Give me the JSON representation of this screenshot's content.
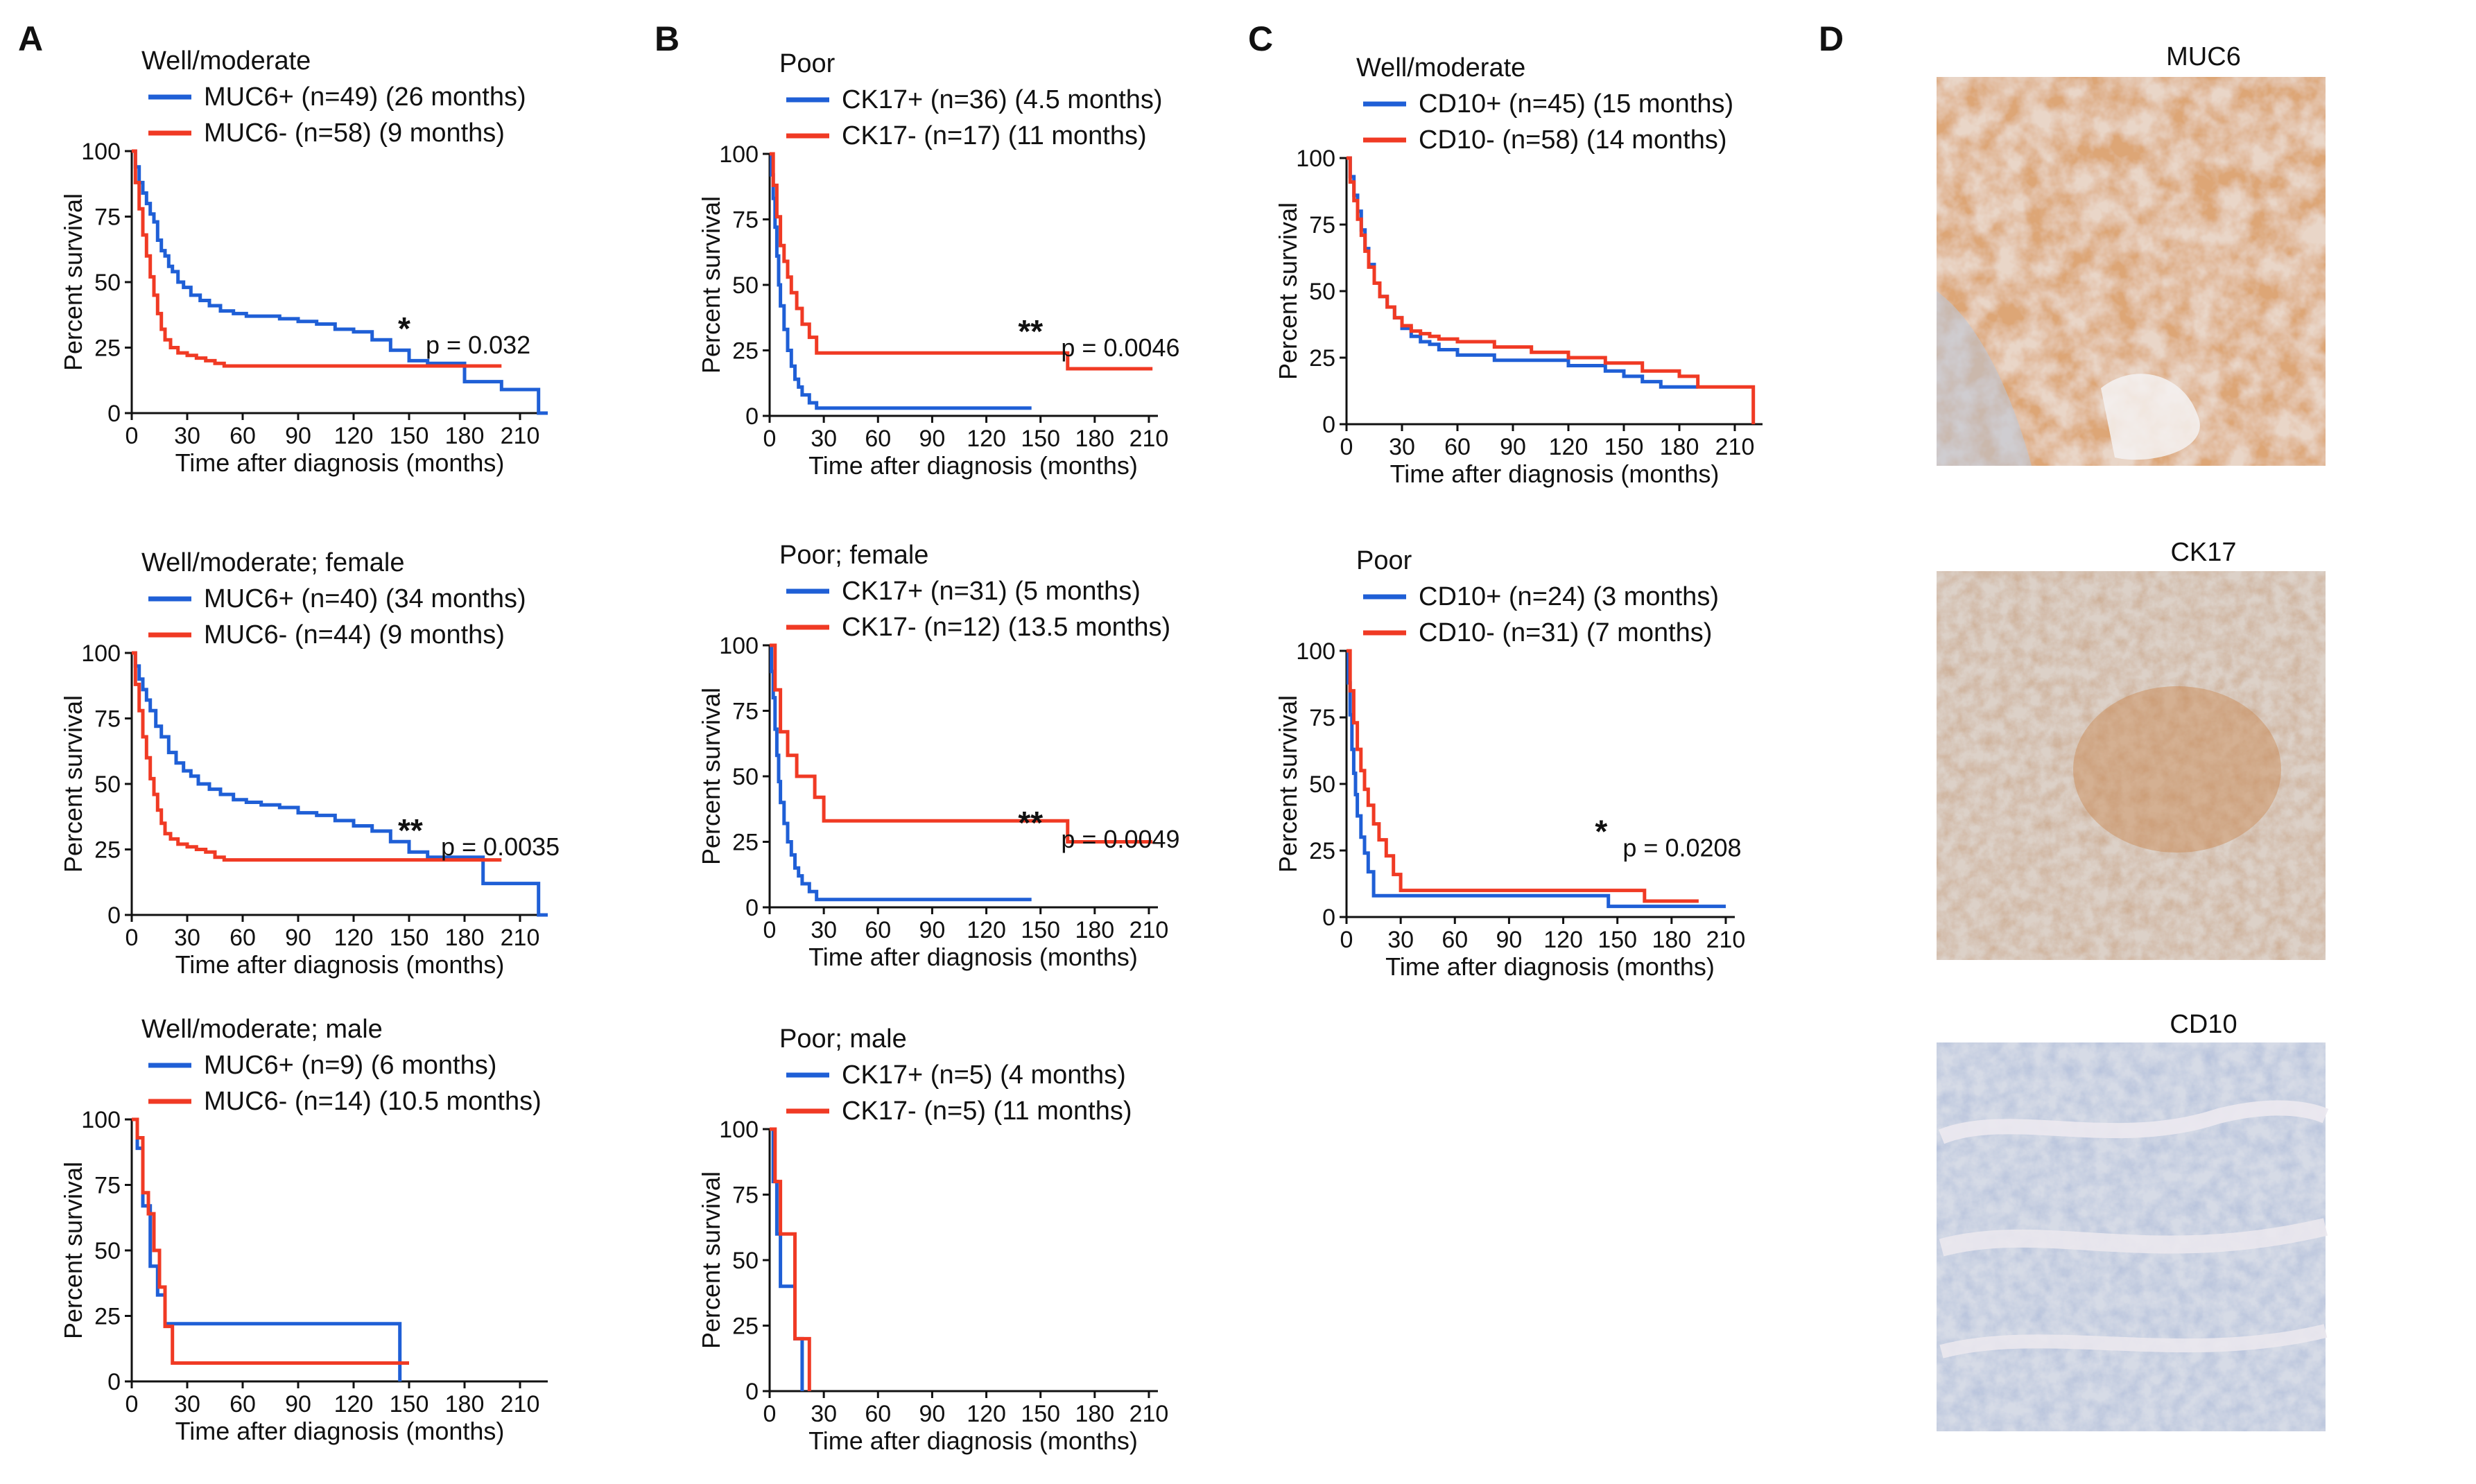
{
  "colors": {
    "positive": "#1f5fd6",
    "negative": "#f03a24",
    "axis": "#111111"
  },
  "panels": {
    "A": "A",
    "B": "B",
    "C": "C",
    "D": "D",
    "images": [
      {
        "title": "MUC6",
        "stain": "strong brown"
      },
      {
        "title": "CK17",
        "stain": "moderate brown"
      },
      {
        "title": "CD10",
        "stain": "faint blue"
      }
    ]
  },
  "chart_data": [
    {
      "type": "line",
      "panel": "A",
      "title": "Well/moderate",
      "xlabel": "Time after diagnosis (months)",
      "ylabel": "Percent survival",
      "xlim": [
        0,
        225
      ],
      "ylim": [
        0,
        100
      ],
      "xticks": [
        "0",
        "30",
        "60",
        "90",
        "120",
        "150",
        "180",
        "210"
      ],
      "yticks": [
        "0",
        "25",
        "50",
        "75",
        "100"
      ],
      "series": [
        {
          "name": "MUC6+ (n=49) (26 months)",
          "color": "#1f5fd6",
          "x": [
            0,
            2,
            4,
            6,
            8,
            10,
            12,
            14,
            16,
            18,
            20,
            22,
            25,
            28,
            32,
            37,
            42,
            48,
            55,
            62,
            70,
            80,
            90,
            100,
            110,
            120,
            130,
            140,
            150,
            160,
            170,
            180,
            190,
            200,
            210,
            220,
            225
          ],
          "y": [
            100,
            94,
            88,
            84,
            80,
            76,
            73,
            66,
            62,
            60,
            56,
            54,
            50,
            48,
            45,
            43,
            41,
            39,
            38,
            37,
            37,
            36,
            35,
            34,
            32,
            31,
            28,
            24,
            20,
            19,
            19,
            12,
            12,
            9,
            9,
            0,
            0
          ]
        },
        {
          "name": "MUC6- (n=58) (9 months)",
          "color": "#f03a24",
          "x": [
            0,
            2,
            4,
            6,
            8,
            10,
            12,
            14,
            16,
            18,
            21,
            25,
            30,
            35,
            40,
            45,
            50,
            60,
            80,
            100,
            140,
            180,
            200
          ],
          "y": [
            100,
            88,
            78,
            68,
            60,
            52,
            45,
            38,
            32,
            28,
            25,
            23,
            22,
            21,
            20,
            19,
            18,
            18,
            18,
            18,
            18,
            18,
            18
          ]
        }
      ],
      "annotation": {
        "stars": "*",
        "text": "p = 0.032"
      }
    },
    {
      "type": "line",
      "panel": "A",
      "title": "Well/moderate; female",
      "xlabel": "Time after diagnosis (months)",
      "ylabel": "Percent survival",
      "xlim": [
        0,
        225
      ],
      "ylim": [
        0,
        100
      ],
      "xticks": [
        "0",
        "30",
        "60",
        "90",
        "120",
        "150",
        "180",
        "210"
      ],
      "yticks": [
        "0",
        "25",
        "50",
        "75",
        "100"
      ],
      "series": [
        {
          "name": "MUC6+ (n=40) (34 months)",
          "color": "#1f5fd6",
          "x": [
            0,
            2,
            4,
            6,
            8,
            10,
            13,
            16,
            20,
            24,
            28,
            32,
            36,
            42,
            48,
            55,
            62,
            70,
            80,
            90,
            100,
            110,
            120,
            130,
            140,
            150,
            160,
            180,
            190,
            200,
            210,
            220,
            225
          ],
          "y": [
            100,
            95,
            90,
            86,
            82,
            78,
            72,
            68,
            62,
            58,
            55,
            53,
            50,
            48,
            46,
            44,
            43,
            42,
            41,
            39,
            38,
            36,
            34,
            32,
            28,
            24,
            22,
            22,
            12,
            12,
            12,
            0,
            0
          ]
        },
        {
          "name": "MUC6- (n=44) (9 months)",
          "color": "#f03a24",
          "x": [
            0,
            2,
            4,
            6,
            8,
            10,
            12,
            14,
            16,
            18,
            21,
            25,
            30,
            35,
            40,
            45,
            50,
            60,
            80,
            100,
            140,
            180,
            200
          ],
          "y": [
            100,
            88,
            78,
            68,
            60,
            52,
            46,
            40,
            35,
            31,
            29,
            27,
            26,
            25,
            24,
            22,
            21,
            21,
            21,
            21,
            21,
            21,
            21
          ]
        }
      ],
      "annotation": {
        "stars": "**",
        "text": "p = 0.0035"
      }
    },
    {
      "type": "line",
      "panel": "A",
      "title": "Well/moderate; male",
      "xlabel": "Time after diagnosis (months)",
      "ylabel": "Percent survival",
      "xlim": [
        0,
        225
      ],
      "ylim": [
        0,
        100
      ],
      "xticks": [
        "0",
        "30",
        "60",
        "90",
        "120",
        "150",
        "180",
        "210"
      ],
      "yticks": [
        "0",
        "25",
        "50",
        "75",
        "100"
      ],
      "series": [
        {
          "name": "MUC6+ (n=9) (6 months)",
          "color": "#1f5fd6",
          "x": [
            0,
            3,
            6,
            10,
            14,
            18,
            22,
            30,
            60,
            100,
            130,
            143,
            145
          ],
          "y": [
            100,
            89,
            67,
            44,
            33,
            22,
            22,
            22,
            22,
            22,
            22,
            22,
            0
          ]
        },
        {
          "name": "MUC6- (n=14) (10.5 months)",
          "color": "#f03a24",
          "x": [
            0,
            3,
            6,
            9,
            12,
            15,
            18,
            22,
            30,
            60,
            100,
            150
          ],
          "y": [
            100,
            93,
            72,
            64,
            50,
            36,
            21,
            7,
            7,
            7,
            7,
            7
          ]
        }
      ]
    },
    {
      "type": "line",
      "panel": "B",
      "title": "Poor",
      "xlabel": "Time after diagnosis (months)",
      "ylabel": "Percent survival",
      "xlim": [
        0,
        215
      ],
      "ylim": [
        0,
        100
      ],
      "xticks": [
        "0",
        "30",
        "60",
        "90",
        "120",
        "150",
        "180",
        "210"
      ],
      "yticks": [
        "0",
        "25",
        "50",
        "75",
        "100"
      ],
      "series": [
        {
          "name": "CK17+ (n=36) (4.5 months)",
          "color": "#1f5fd6",
          "x": [
            0,
            1,
            2,
            3,
            4,
            5,
            6,
            8,
            10,
            12,
            14,
            16,
            18,
            22,
            26,
            30,
            60,
            100,
            145
          ],
          "y": [
            100,
            92,
            83,
            72,
            61,
            50,
            42,
            33,
            25,
            19,
            14,
            11,
            8,
            5,
            3,
            3,
            3,
            3,
            3
          ]
        },
        {
          "name": "CK17- (n=17) (11 months)",
          "color": "#f03a24",
          "x": [
            0,
            2,
            4,
            6,
            8,
            10,
            12,
            15,
            18,
            22,
            26,
            30,
            60,
            100,
            140,
            165,
            190,
            212
          ],
          "y": [
            100,
            88,
            76,
            65,
            59,
            53,
            47,
            41,
            35,
            30,
            24,
            24,
            24,
            24,
            24,
            18,
            18,
            18
          ]
        }
      ],
      "annotation": {
        "stars": "**",
        "text": "p = 0.0046"
      }
    },
    {
      "type": "line",
      "panel": "B",
      "title": "Poor; female",
      "xlabel": "Time after diagnosis (months)",
      "ylabel": "Percent survival",
      "xlim": [
        0,
        215
      ],
      "ylim": [
        0,
        100
      ],
      "xticks": [
        "0",
        "30",
        "60",
        "90",
        "120",
        "150",
        "180",
        "210"
      ],
      "yticks": [
        "0",
        "25",
        "50",
        "75",
        "100"
      ],
      "series": [
        {
          "name": "CK17+ (n=31) (5 months)",
          "color": "#1f5fd6",
          "x": [
            0,
            1,
            2,
            3,
            4,
            5,
            6,
            8,
            10,
            12,
            14,
            16,
            18,
            22,
            26,
            30,
            60,
            100,
            145
          ],
          "y": [
            100,
            90,
            80,
            68,
            58,
            48,
            40,
            32,
            25,
            20,
            15,
            12,
            9,
            6,
            3,
            3,
            3,
            3,
            3
          ]
        },
        {
          "name": "CK17- (n=12) (13.5 months)",
          "color": "#f03a24",
          "x": [
            0,
            3,
            6,
            10,
            15,
            20,
            25,
            30,
            60,
            100,
            140,
            165,
            190,
            212
          ],
          "y": [
            100,
            83,
            67,
            58,
            50,
            50,
            42,
            33,
            33,
            33,
            33,
            25,
            25,
            25
          ]
        }
      ],
      "annotation": {
        "stars": "**",
        "text": "p = 0.0049"
      }
    },
    {
      "type": "line",
      "panel": "B",
      "title": "Poor; male",
      "xlabel": "Time after diagnosis (months)",
      "ylabel": "Percent survival",
      "xlim": [
        0,
        215
      ],
      "ylim": [
        0,
        100
      ],
      "xticks": [
        "0",
        "30",
        "60",
        "90",
        "120",
        "150",
        "180",
        "210"
      ],
      "yticks": [
        "0",
        "25",
        "50",
        "75",
        "100"
      ],
      "series": [
        {
          "name": "CK17+ (n=5) (4 months)",
          "color": "#1f5fd6",
          "x": [
            0,
            2,
            4,
            6,
            10,
            14,
            18
          ],
          "y": [
            100,
            80,
            60,
            40,
            40,
            20,
            0
          ]
        },
        {
          "name": "CK17- (n=5) (11 months)",
          "color": "#f03a24",
          "x": [
            0,
            3,
            6,
            10,
            14,
            18,
            22
          ],
          "y": [
            100,
            80,
            60,
            60,
            20,
            20,
            0
          ]
        }
      ]
    },
    {
      "type": "line",
      "panel": "C",
      "title": "Well/moderate",
      "xlabel": "Time after diagnosis (months)",
      "ylabel": "Percent survival",
      "xlim": [
        0,
        225
      ],
      "ylim": [
        0,
        100
      ],
      "xticks": [
        "0",
        "30",
        "60",
        "90",
        "120",
        "150",
        "180",
        "210"
      ],
      "yticks": [
        "0",
        "25",
        "50",
        "75",
        "100"
      ],
      "series": [
        {
          "name": "CD10+ (n=45) (15 months)",
          "color": "#1f5fd6",
          "x": [
            0,
            2,
            4,
            6,
            8,
            10,
            12,
            15,
            18,
            22,
            26,
            30,
            35,
            40,
            45,
            50,
            60,
            80,
            100,
            120,
            140,
            150,
            160,
            170,
            180,
            190
          ],
          "y": [
            100,
            93,
            86,
            80,
            73,
            66,
            60,
            53,
            48,
            44,
            40,
            36,
            33,
            31,
            30,
            28,
            26,
            24,
            24,
            22,
            20,
            18,
            16,
            14,
            14,
            14
          ]
        },
        {
          "name": "CD10- (n=58) (14 months)",
          "color": "#f03a24",
          "x": [
            0,
            2,
            4,
            6,
            8,
            10,
            12,
            15,
            18,
            22,
            26,
            30,
            35,
            40,
            45,
            50,
            60,
            80,
            100,
            120,
            140,
            160,
            180,
            190,
            200,
            210,
            218,
            220
          ],
          "y": [
            100,
            91,
            84,
            77,
            71,
            65,
            59,
            53,
            48,
            44,
            40,
            37,
            35,
            34,
            33,
            32,
            31,
            29,
            27,
            25,
            23,
            20,
            18,
            14,
            14,
            14,
            14,
            0
          ]
        }
      ]
    },
    {
      "type": "line",
      "panel": "C",
      "title": "Poor",
      "xlabel": "Time after diagnosis (months)",
      "ylabel": "Percent survival",
      "xlim": [
        0,
        215
      ],
      "ylim": [
        0,
        100
      ],
      "xticks": [
        "0",
        "30",
        "60",
        "90",
        "120",
        "150",
        "180",
        "210"
      ],
      "yticks": [
        "0",
        "25",
        "50",
        "75",
        "100"
      ],
      "series": [
        {
          "name": "CD10+ (n=24) (3 months)",
          "color": "#1f5fd6",
          "x": [
            0,
            1,
            2,
            3,
            4,
            5,
            6,
            8,
            10,
            12,
            15,
            30,
            60,
            100,
            140,
            145,
            150,
            200,
            210
          ],
          "y": [
            100,
            88,
            76,
            63,
            54,
            46,
            38,
            30,
            24,
            17,
            8,
            8,
            8,
            8,
            8,
            4,
            4,
            4,
            4
          ]
        },
        {
          "name": "CD10- (n=31) (7 months)",
          "color": "#f03a24",
          "x": [
            0,
            2,
            4,
            6,
            8,
            10,
            12,
            15,
            18,
            22,
            26,
            30,
            60,
            100,
            140,
            160,
            165,
            195
          ],
          "y": [
            100,
            85,
            73,
            63,
            55,
            48,
            42,
            35,
            29,
            23,
            16,
            10,
            10,
            10,
            10,
            10,
            6,
            6
          ]
        }
      ],
      "annotation": {
        "stars": "*",
        "text": "p = 0.0208"
      }
    }
  ]
}
